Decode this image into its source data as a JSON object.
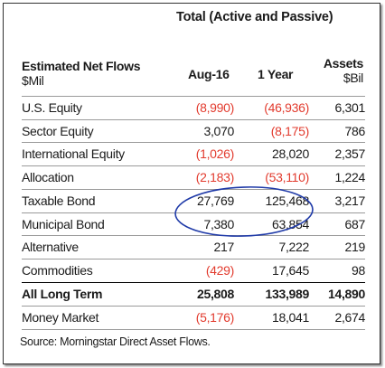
{
  "title": "Total (Active and Passive)",
  "header": {
    "label_line1": "Estimated Net Flows",
    "label_line2": "$Mil",
    "col_aug": "Aug-16",
    "col_year": "1 Year",
    "col_assets_line1": "Assets",
    "col_assets_line2": "$Bil"
  },
  "rows": [
    {
      "name": "U.S. Equity",
      "aug": "(8,990)",
      "year": "(46,936)",
      "assets": "6,301"
    },
    {
      "name": "Sector Equity",
      "aug": "3,070",
      "year": "(8,175)",
      "assets": "786"
    },
    {
      "name": "International Equity",
      "aug": "(1,026)",
      "year": "28,020",
      "assets": "2,357"
    },
    {
      "name": "Allocation",
      "aug": "(2,183)",
      "year": "(53,110)",
      "assets": "1,224"
    },
    {
      "name": "Taxable Bond",
      "aug": "27,769",
      "year": "125,468",
      "assets": "3,217"
    },
    {
      "name": "Municipal Bond",
      "aug": "7,380",
      "year": "63,854",
      "assets": "687"
    },
    {
      "name": "Alternative",
      "aug": "217",
      "year": "7,222",
      "assets": "219"
    },
    {
      "name": "Commodities",
      "aug": "(429)",
      "year": "17,645",
      "assets": "98"
    },
    {
      "name": "All Long Term",
      "aug": "25,808",
      "year": "133,989",
      "assets": "14,890"
    },
    {
      "name": "Money Market",
      "aug": "(5,176)",
      "year": "18,041",
      "assets": "2,674"
    }
  ],
  "source": "Source: Morningstar Direct Asset Flows.",
  "colors": {
    "negative": "#e23b2e",
    "highlight_ellipse": "#1f3aa8"
  }
}
